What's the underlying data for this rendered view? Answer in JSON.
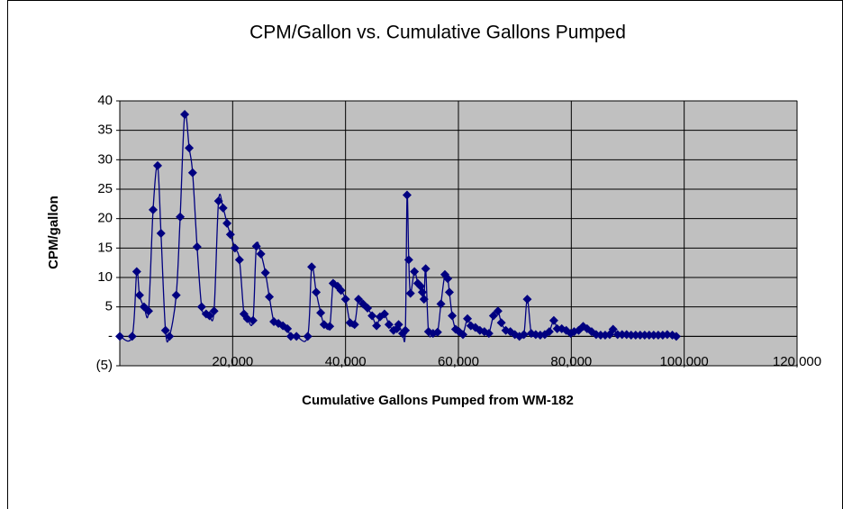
{
  "chart_data": {
    "type": "scatter",
    "title": "CPM/Gallon vs. Cumulative Gallons Pumped",
    "x_label": "Cumulative Gallons Pumped from WM-182",
    "y_label": "CPM/gallon",
    "color": "#000080",
    "grid": true,
    "smooth": true,
    "xlim": [
      0,
      120000
    ],
    "xticks": [
      {
        "value": 20000,
        "label": "20,000"
      },
      {
        "value": 40000,
        "label": "40,000"
      },
      {
        "value": 60000,
        "label": "60,000"
      },
      {
        "value": 80000,
        "label": "80,000"
      },
      {
        "value": 100000,
        "label": "100,000"
      },
      {
        "value": 120000,
        "label": "120,000"
      }
    ],
    "ylim": [
      -5,
      40
    ],
    "yticks": [
      {
        "value": -5,
        "label": "(5)"
      },
      {
        "value": 0,
        "label": "-"
      },
      5,
      10,
      15,
      20,
      25,
      30,
      35,
      40
    ],
    "x": [
      0,
      2200,
      3000,
      3500,
      4300,
      5100,
      5900,
      6700,
      7300,
      8100,
      8800,
      10000,
      10700,
      11500,
      12300,
      12900,
      13700,
      14500,
      15300,
      15900,
      16700,
      17500,
      18300,
      19000,
      19600,
      20400,
      21200,
      22000,
      22600,
      23600,
      24200,
      25000,
      25800,
      26500,
      27300,
      28100,
      28900,
      29700,
      30300,
      31300,
      33300,
      34000,
      34800,
      35600,
      36200,
      37200,
      37800,
      38600,
      39200,
      40000,
      40800,
      41600,
      42300,
      43100,
      43900,
      44700,
      45500,
      46100,
      46900,
      47700,
      48500,
      49100,
      49400,
      50100,
      50600,
      50900,
      51200,
      51500,
      52200,
      52800,
      53300,
      53600,
      53900,
      54200,
      54700,
      55500,
      56300,
      56900,
      57600,
      58100,
      58400,
      58900,
      59500,
      60100,
      60800,
      61600,
      62200,
      63000,
      63800,
      64600,
      65400,
      66200,
      67000,
      67600,
      68400,
      69200,
      70000,
      70800,
      71600,
      72200,
      72900,
      73700,
      74500,
      75300,
      76100,
      76900,
      77500,
      78300,
      79100,
      79900,
      80500,
      81300,
      82100,
      82800,
      83600,
      84400,
      85200,
      86000,
      86800,
      87400,
      88200,
      89000,
      89800,
      90600,
      91400,
      92200,
      93000,
      93800,
      94600,
      95400,
      96200,
      97000,
      97900,
      98600
    ],
    "values": [
      0,
      0,
      11,
      7,
      5,
      4.3,
      21.5,
      29,
      17.5,
      1,
      0,
      7,
      20.3,
      37.7,
      32,
      27.8,
      15.2,
      5,
      3.8,
      3.5,
      4.3,
      23,
      21.8,
      19.2,
      17.3,
      15,
      13,
      3.8,
      3,
      2.7,
      15.3,
      14,
      10.8,
      6.7,
      2.5,
      2.2,
      1.8,
      1.3,
      0,
      0,
      0,
      11.8,
      7.5,
      4,
      2,
      1.7,
      9,
      8.5,
      7.8,
      6.3,
      2.3,
      2,
      6.3,
      5.5,
      4.8,
      3.5,
      1.8,
      3.3,
      3.8,
      2,
      1,
      1.3,
      2,
      0.5,
      1,
      24,
      13,
      7.3,
      11,
      9,
      8.5,
      7.5,
      6.3,
      11.5,
      0.8,
      0.5,
      0.7,
      5.5,
      10.5,
      9.8,
      7.5,
      3.5,
      1.2,
      0.8,
      0.3,
      3,
      1.8,
      1.5,
      1,
      0.8,
      0.5,
      3.5,
      4.3,
      2.3,
      1,
      0.8,
      0.3,
      0,
      0.3,
      6.3,
      0.5,
      0.3,
      0.2,
      0.3,
      0.8,
      2.7,
      1.3,
      1.3,
      1,
      0.5,
      0.8,
      1,
      1.7,
      1.3,
      0.8,
      0.3,
      0.2,
      0.2,
      0.3,
      1.2,
      0.3,
      0.3,
      0.3,
      0.2,
      0.2,
      0.2,
      0.2,
      0.2,
      0.2,
      0.2,
      0.2,
      0.3,
      0.2,
      0
    ]
  }
}
